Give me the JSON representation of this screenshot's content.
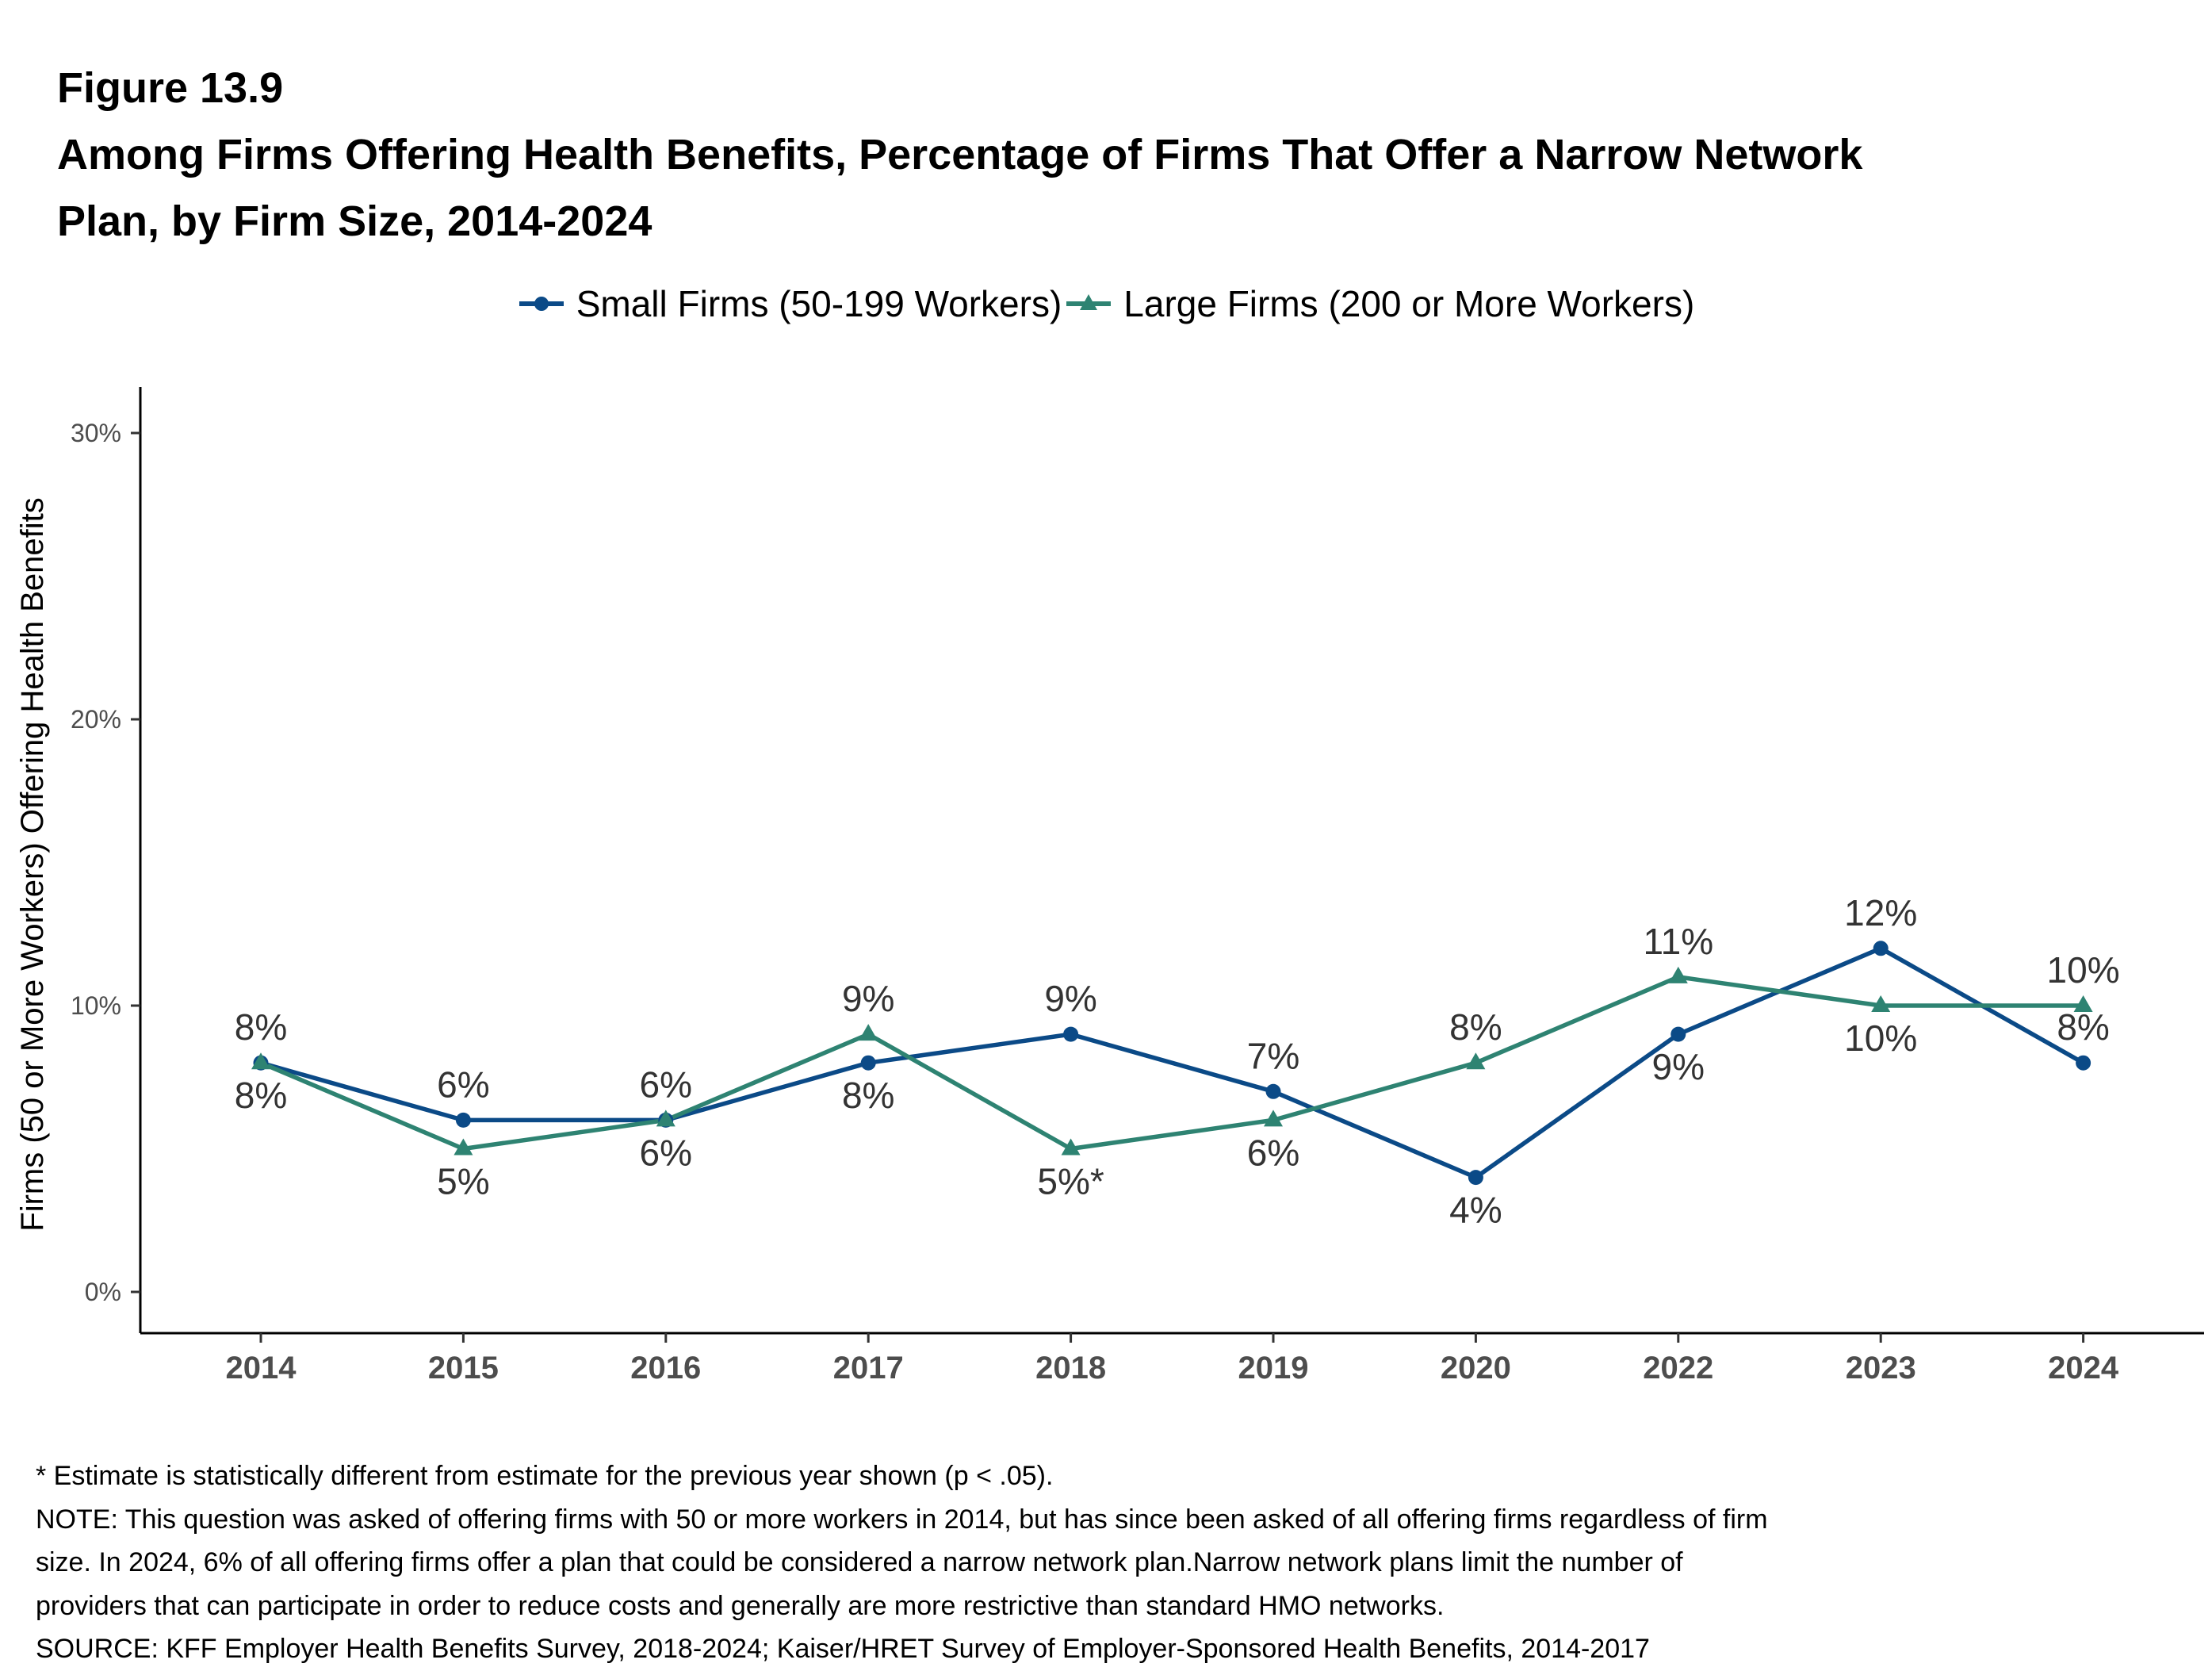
{
  "header": {
    "figure_label": "Figure 13.9",
    "title_line1": "Among Firms Offering Health Benefits, Percentage of Firms That Offer a Narrow Network",
    "title_line2": "Plan, by Firm Size, 2014-2024"
  },
  "chart_data": {
    "type": "line",
    "categories": [
      "2014",
      "2015",
      "2016",
      "2017",
      "2018",
      "2019",
      "2020",
      "2022",
      "2023",
      "2024"
    ],
    "ylabel": "Firms (50 or More Workers) Offering Health Benefits",
    "xlabel": "",
    "ylim": [
      0,
      30
    ],
    "yticks": [
      "0%",
      "10%",
      "20%",
      "30%"
    ],
    "ytick_values": [
      0,
      10,
      20,
      30
    ],
    "grid": false,
    "legend_position": "top",
    "series": [
      {
        "name": "Small Firms (50-199 Workers)",
        "color": "#0b4a87",
        "marker": "circle",
        "values": [
          8,
          6,
          6,
          8,
          9,
          7,
          4,
          9,
          12,
          8
        ],
        "labels": [
          "8%",
          "6%",
          "6%",
          "8%",
          "9%",
          "7%",
          "4%",
          "9%",
          "12%",
          "8%"
        ],
        "label_side": [
          "above",
          "above",
          "above",
          "below",
          "above",
          "above",
          "below",
          "below",
          "above",
          "above"
        ]
      },
      {
        "name": "Large Firms (200 or More Workers)",
        "color": "#2e8372",
        "marker": "triangle",
        "values": [
          8,
          5,
          6,
          9,
          5,
          6,
          8,
          11,
          10,
          10
        ],
        "labels": [
          "8%",
          "5%",
          "6%",
          "9%",
          "5%*",
          "6%",
          "8%",
          "11%",
          "10%",
          "10%"
        ],
        "label_side": [
          "above",
          "below",
          "above",
          "above",
          "below",
          "below",
          "above",
          "above",
          "below",
          "below"
        ]
      }
    ]
  },
  "notes": {
    "line1": "* Estimate is statistically different from estimate for the previous year shown (p < .05).",
    "line2": "NOTE: This question was asked of offering firms with 50 or more workers in 2014, but has since been asked of all offering firms regardless of firm",
    "line3": "size. In 2024, 6% of all offering firms offer a plan that could be considered a narrow network plan.Narrow network plans limit the number of",
    "line4": "providers that can participate in order to reduce costs and generally are more restrictive than standard HMO networks.",
    "line5": "SOURCE: KFF Employer Health Benefits Survey, 2018-2024; Kaiser/HRET Survey of Employer-Sponsored Health Benefits, 2014-2017"
  }
}
